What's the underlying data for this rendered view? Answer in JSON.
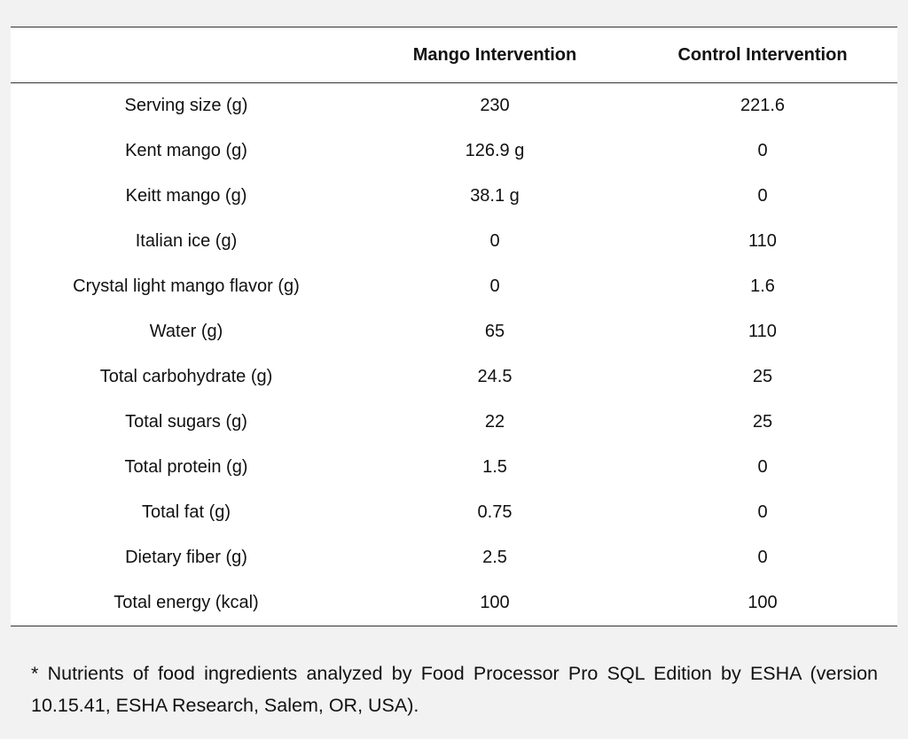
{
  "table": {
    "headers": [
      "",
      "Mango Intervention",
      "Control Intervention"
    ],
    "rows": [
      [
        "Serving size (g)",
        "230",
        "221.6"
      ],
      [
        "Kent mango (g)",
        "126.9 g",
        "0"
      ],
      [
        "Keitt mango (g)",
        "38.1 g",
        "0"
      ],
      [
        "Italian ice (g)",
        "0",
        "110"
      ],
      [
        "Crystal light mango flavor (g)",
        "0",
        "1.6"
      ],
      [
        "Water (g)",
        "65",
        "110"
      ],
      [
        "Total carbohydrate (g)",
        "24.5",
        "25"
      ],
      [
        "Total sugars (g)",
        "22",
        "25"
      ],
      [
        "Total protein (g)",
        "1.5",
        "0"
      ],
      [
        "Total fat (g)",
        "0.75",
        "0"
      ],
      [
        "Dietary fiber (g)",
        "2.5",
        "0"
      ],
      [
        "Total energy (kcal)",
        "100",
        "100"
      ]
    ]
  },
  "footnote": "* Nutrients of food ingredients analyzed by Food Processor Pro SQL Edition by ESHA (version 10.15.41, ESHA Research, Salem, OR, USA)."
}
